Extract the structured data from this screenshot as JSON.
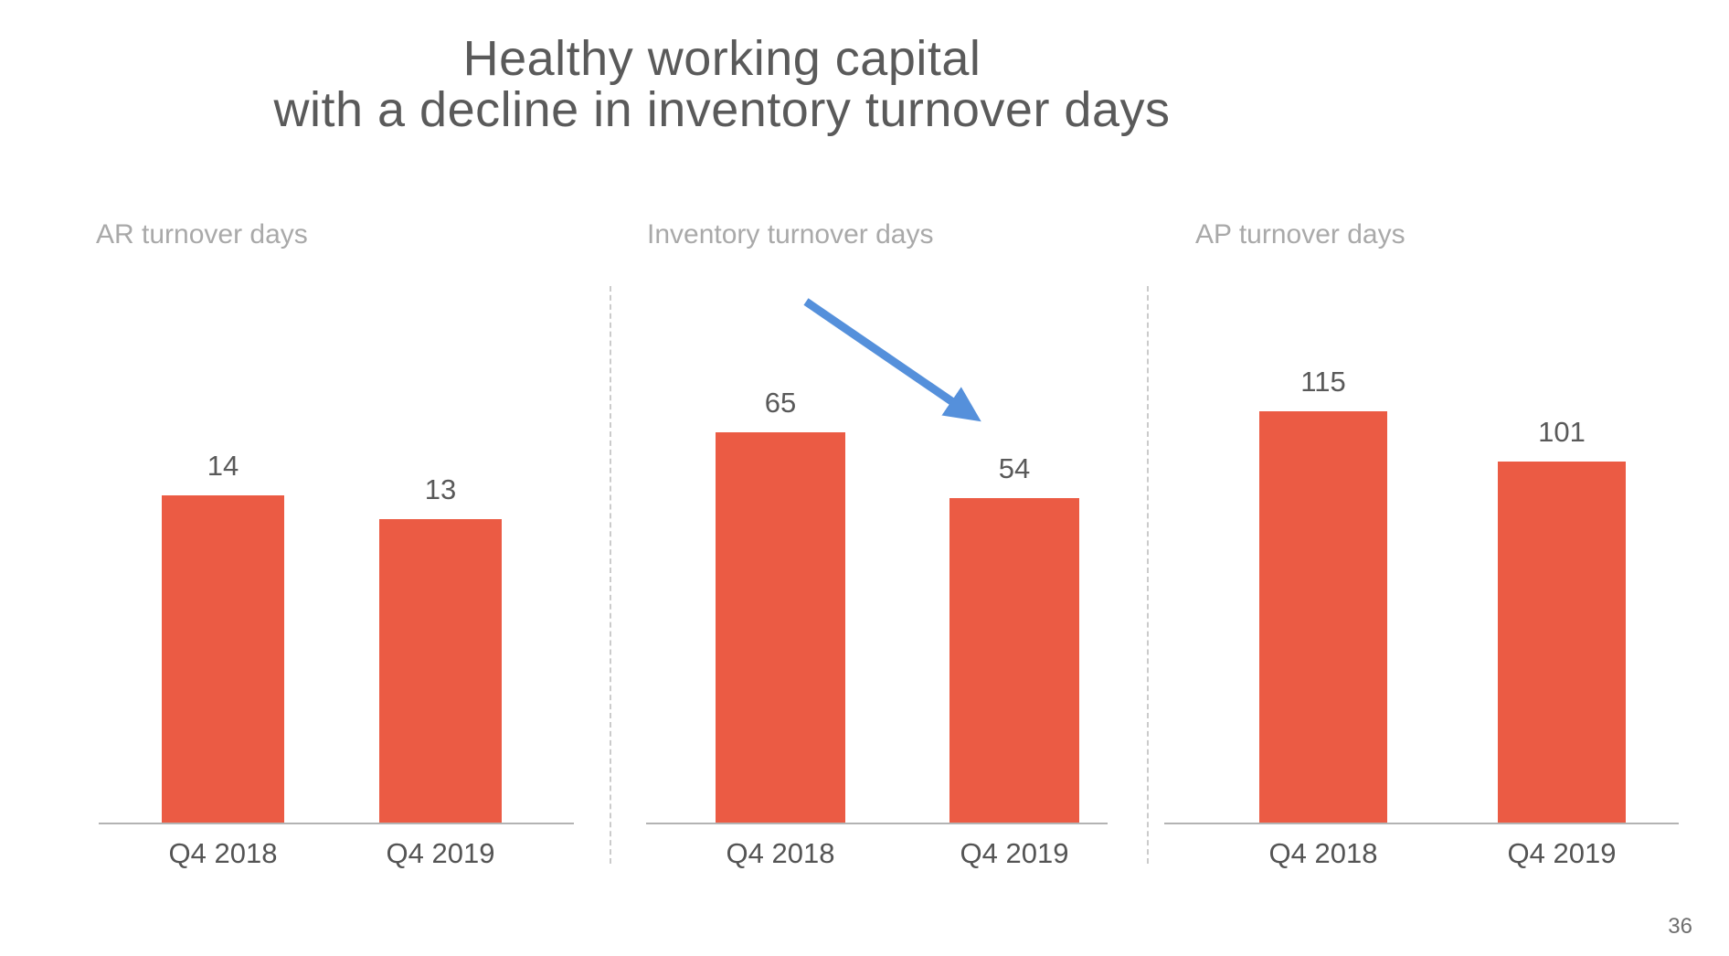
{
  "slide": {
    "title_line1": "Healthy working capital",
    "title_line2": "with a decline in inventory turnover days",
    "page_number": "36"
  },
  "colors": {
    "bar": "#eb5b44",
    "arrow": "#5590db",
    "title_text": "#5a5a5a",
    "chart_label_text": "#a9a9a9",
    "axis_line": "#b3b3b3"
  },
  "chart_data": [
    {
      "type": "bar",
      "title": "AR turnover days",
      "categories": [
        "Q4 2018",
        "Q4 2019"
      ],
      "values": [
        14,
        13
      ],
      "ylim": [
        0,
        18
      ],
      "grid": false,
      "data_labels": true,
      "bar_color": "#eb5b44"
    },
    {
      "type": "bar",
      "title": "Inventory turnover days",
      "categories": [
        "Q4 2018",
        "Q4 2019"
      ],
      "values": [
        65,
        54
      ],
      "ylim": [
        0,
        70
      ],
      "grid": false,
      "data_labels": true,
      "bar_color": "#eb5b44",
      "annotation": {
        "shape": "arrow-down-right",
        "color": "#5590db"
      }
    },
    {
      "type": "bar",
      "title": "AP turnover days",
      "categories": [
        "Q4 2018",
        "Q4 2019"
      ],
      "values": [
        115,
        101
      ],
      "ylim": [
        0,
        117.5
      ],
      "grid": false,
      "data_labels": true,
      "bar_color": "#eb5b44"
    }
  ]
}
